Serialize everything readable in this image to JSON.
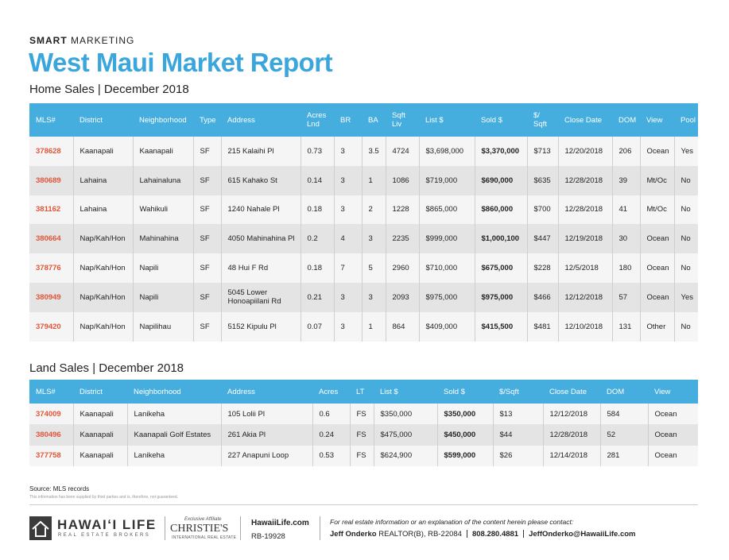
{
  "header": {
    "kicker_bold": "SMART",
    "kicker": "MARKETING",
    "title": "West Maui Market Report"
  },
  "home_sales": {
    "heading": "Home Sales | December 2018",
    "columns": [
      "MLS#",
      "District",
      "Neighborhood",
      "Type",
      "Address",
      "Acres\nLnd",
      "BR",
      "BA",
      "Sqft\nLiv",
      "List $",
      "Sold $",
      "$/\nSqft",
      "Close Date",
      "DOM",
      "View",
      "Pool"
    ],
    "rows": [
      [
        "378628",
        "Kaanapali",
        "Kaanapali",
        "SF",
        "215 Kalaihi Pl",
        "0.73",
        "3",
        "3.5",
        "4724",
        "$3,698,000",
        "$3,370,000",
        "$713",
        "12/20/2018",
        "206",
        "Ocean",
        "Yes"
      ],
      [
        "380689",
        "Lahaina",
        "Lahainaluna",
        "SF",
        "615 Kahako St",
        "0.14",
        "3",
        "1",
        "1086",
        "$719,000",
        "$690,000",
        "$635",
        "12/28/2018",
        "39",
        "Mt/Oc",
        "No"
      ],
      [
        "381162",
        "Lahaina",
        "Wahikuli",
        "SF",
        "1240 Nahale Pl",
        "0.18",
        "3",
        "2",
        "1228",
        "$865,000",
        "$860,000",
        "$700",
        "12/28/2018",
        "41",
        "Mt/Oc",
        "No"
      ],
      [
        "380664",
        "Nap/Kah/Hon",
        "Mahinahina",
        "SF",
        "4050 Mahinahina Pl",
        "0.2",
        "4",
        "3",
        "2235",
        "$999,000",
        "$1,000,100",
        "$447",
        "12/19/2018",
        "30",
        "Ocean",
        "No"
      ],
      [
        "378776",
        "Nap/Kah/Hon",
        "Napili",
        "SF",
        "48 Hui F Rd",
        "0.18",
        "7",
        "5",
        "2960",
        "$710,000",
        "$675,000",
        "$228",
        "12/5/2018",
        "180",
        "Ocean",
        "No"
      ],
      [
        "380949",
        "Nap/Kah/Hon",
        "Napili",
        "SF",
        "5045 Lower Honoapiilani Rd",
        "0.21",
        "3",
        "3",
        "2093",
        "$975,000",
        "$975,000",
        "$466",
        "12/12/2018",
        "57",
        "Ocean",
        "Yes"
      ],
      [
        "379420",
        "Nap/Kah/Hon",
        "Napilihau",
        "SF",
        "5152 Kipulu Pl",
        "0.07",
        "3",
        "1",
        "864",
        "$409,000",
        "$415,500",
        "$481",
        "12/10/2018",
        "131",
        "Other",
        "No"
      ]
    ]
  },
  "land_sales": {
    "heading": "Land Sales | December 2018",
    "columns": [
      "MLS#",
      "District",
      "Neighborhood",
      "Address",
      "Acres",
      "LT",
      "List $",
      "Sold $",
      "$/Sqft",
      "Close Date",
      "DOM",
      "View"
    ],
    "rows": [
      [
        "374009",
        "Kaanapali",
        "Lanikeha",
        "105 Lolii Pl",
        "0.6",
        "FS",
        "$350,000",
        "$350,000",
        "$13",
        "12/12/2018",
        "584",
        "Ocean"
      ],
      [
        "380496",
        "Kaanapali",
        "Kaanapali Golf Estates",
        "261 Akia Pl",
        "0.24",
        "FS",
        "$475,000",
        "$450,000",
        "$44",
        "12/28/2018",
        "52",
        "Ocean"
      ],
      [
        "377758",
        "Kaanapali",
        "Lanikeha",
        "227 Anapuni Loop",
        "0.53",
        "FS",
        "$624,900",
        "$599,000",
        "$26",
        "12/14/2018",
        "281",
        "Ocean"
      ]
    ]
  },
  "footer": {
    "source": "Source: MLS records",
    "disclaimer": "This information has been supplied by third parties and is, therefore, not guaranteed.",
    "brand": "HAWAIʻI LIFE",
    "brand_sub": "REAL ESTATE BROKERS",
    "affiliate": "Exclusive Affiliate",
    "christies": "CHRISTIE'S",
    "christies_sub": "INTERNATIONAL REAL ESTATE",
    "website": "HawaiiLife.com",
    "license": "RB-19928",
    "contact_intro": "For real estate information or an explanation of the content herein please contact:",
    "agent": "Jeff Onderko",
    "agent_title": "REALTOR(B), RB-22084",
    "phone": "808.280.4881",
    "email": "JeffOnderko@HawaiiLife.com"
  }
}
